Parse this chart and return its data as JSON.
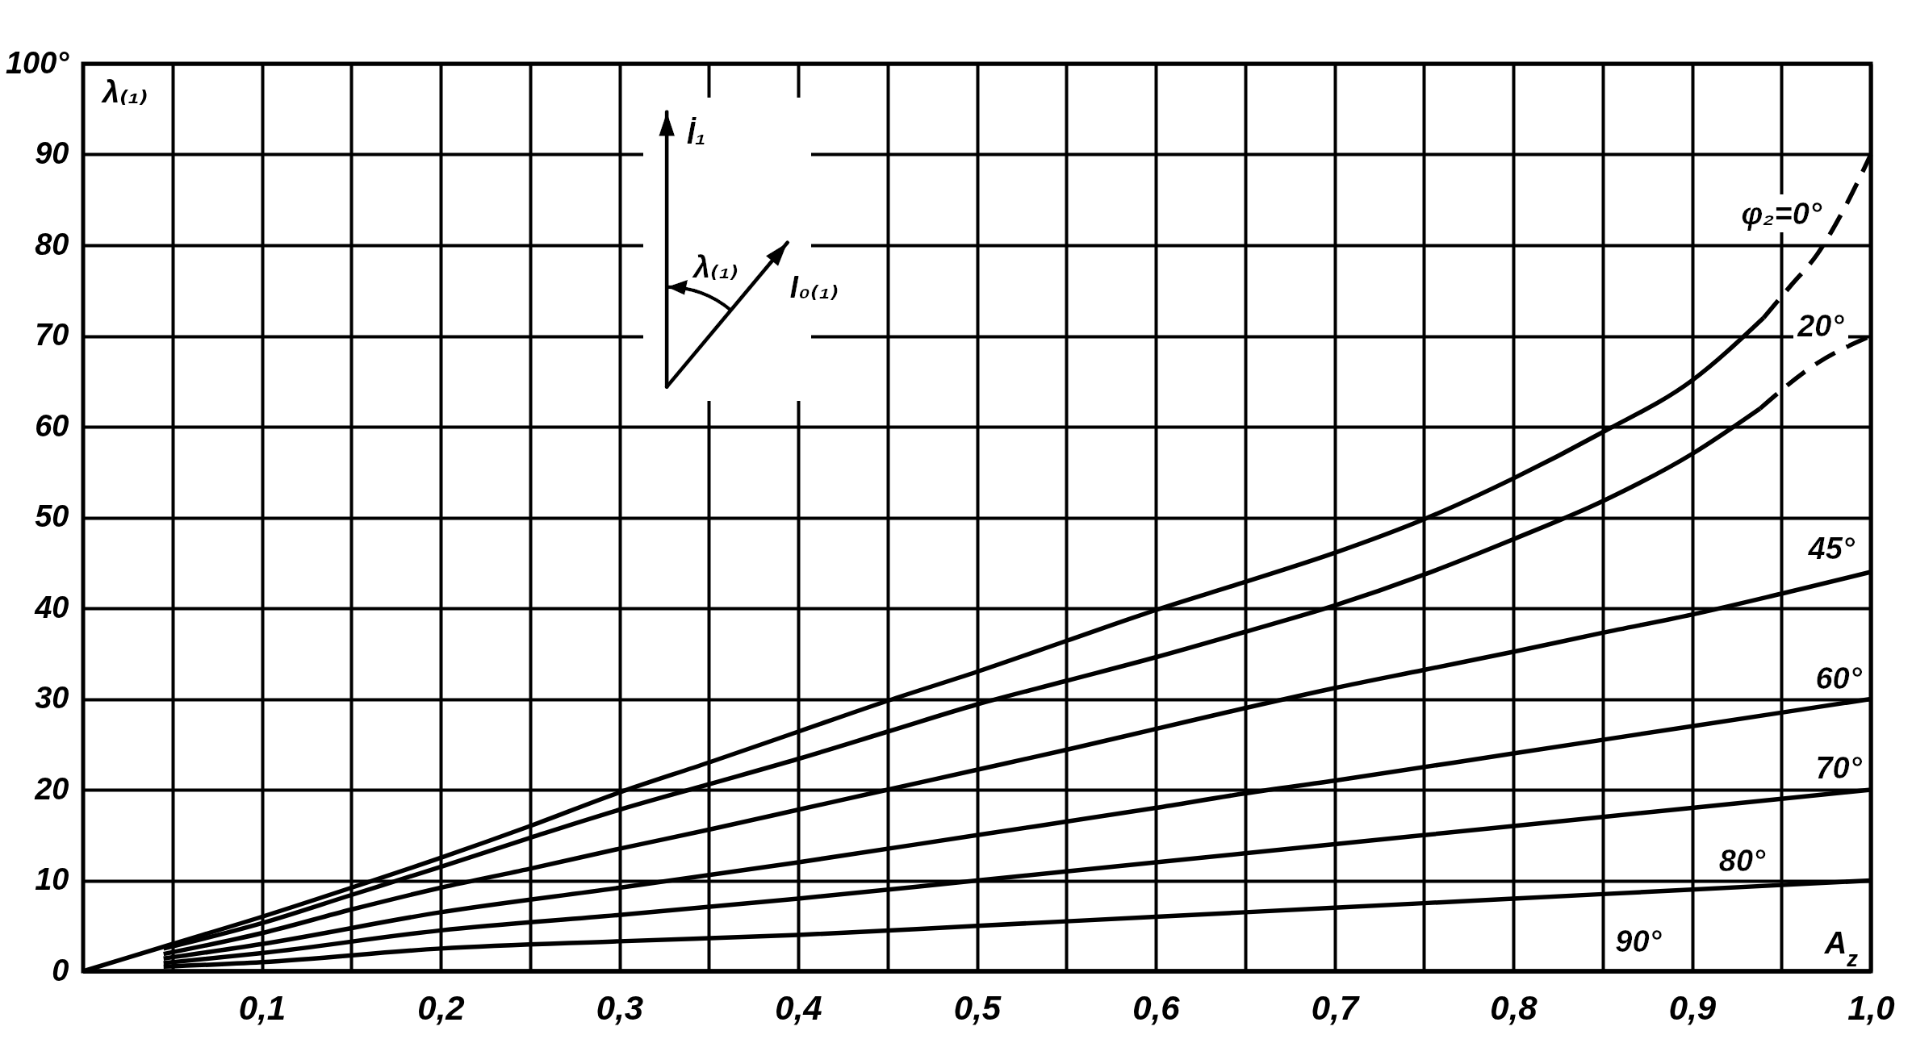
{
  "chart_data": {
    "type": "line",
    "xlabel": "A$_{z}$",
    "ylabel": "λ₍₁₎",
    "annotations": [
      "İ₁",
      "λ₍₁₎",
      "I₀₍₁₎"
    ],
    "xlim": [
      0,
      1.0
    ],
    "ylim": [
      0,
      100
    ],
    "xticks": [
      {
        "value": 0.05,
        "label": null
      },
      {
        "value": 0.1,
        "label": "0,1"
      },
      {
        "value": 0.15,
        "label": null
      },
      {
        "value": 0.2,
        "label": "0,2"
      },
      {
        "value": 0.25,
        "label": null
      },
      {
        "value": 0.3,
        "label": "0,3"
      },
      {
        "value": 0.35,
        "label": null
      },
      {
        "value": 0.4,
        "label": "0,4"
      },
      {
        "value": 0.45,
        "label": null
      },
      {
        "value": 0.5,
        "label": "0,5"
      },
      {
        "value": 0.55,
        "label": null
      },
      {
        "value": 0.6,
        "label": "0,6"
      },
      {
        "value": 0.65,
        "label": null
      },
      {
        "value": 0.7,
        "label": "0,7"
      },
      {
        "value": 0.75,
        "label": null
      },
      {
        "value": 0.8,
        "label": "0,8"
      },
      {
        "value": 0.85,
        "label": null
      },
      {
        "value": 0.9,
        "label": "0,9"
      },
      {
        "value": 0.95,
        "label": null
      },
      {
        "value": 1.0,
        "label": "1,0"
      }
    ],
    "yticks": [
      0,
      10,
      20,
      30,
      40,
      50,
      60,
      70,
      80,
      90,
      {
        "value": 100,
        "label": "100°"
      }
    ],
    "grid": true,
    "line_style": "solid",
    "series": [
      {
        "color": "#000000",
        "x": [
          0,
          0.05,
          0.1,
          0.15,
          0.2,
          0.25,
          0.3,
          0.35,
          0.4,
          0.45,
          0.5,
          0.55,
          0.6,
          0.65,
          0.7,
          0.75,
          0.8,
          0.85,
          0.9,
          0.94
        ],
        "values": [
          0,
          3,
          6,
          9.2,
          12.5,
          16,
          19.7,
          23,
          26.4,
          29.8,
          33,
          36.4,
          39.8,
          42.9,
          46.1,
          49.8,
          54.3,
          59.4,
          65.1,
          72
        ]
      },
      {
        "name": "φ₂=0°",
        "color": "#000000",
        "line_style": "dashed",
        "x": [
          0.94,
          0.955,
          0.97,
          0.985,
          1.0
        ],
        "values": [
          72,
          75.5,
          79,
          84,
          90
        ]
      },
      {
        "color": "#000000",
        "x": [
          0.045,
          0.1,
          0.15,
          0.2,
          0.25,
          0.3,
          0.35,
          0.4,
          0.45,
          0.5,
          0.55,
          0.6,
          0.65,
          0.7,
          0.75,
          0.8,
          0.85,
          0.9,
          0.938
        ],
        "values": [
          2.5,
          5.3,
          8.4,
          11.5,
          14.7,
          17.8,
          20.6,
          23.4,
          26.4,
          29.4,
          32,
          34.6,
          37.4,
          40.3,
          43.7,
          47.6,
          51.8,
          57,
          62
        ]
      },
      {
        "name": "20°",
        "color": "#000000",
        "line_style": "dashed",
        "x": [
          0.938,
          0.97,
          1.0
        ],
        "values": [
          62,
          67,
          70
        ]
      },
      {
        "name": "45°",
        "color": "#000000",
        "x": [
          0.045,
          0.1,
          0.15,
          0.2,
          0.25,
          0.3,
          0.35,
          0.4,
          0.45,
          0.5,
          0.55,
          0.6,
          0.65,
          0.7,
          0.75,
          0.8,
          0.85,
          0.9,
          0.95,
          1.0
        ],
        "values": [
          1.9,
          4.2,
          6.8,
          9.2,
          11.3,
          13.5,
          15.6,
          17.8,
          20,
          22.2,
          24.4,
          26.7,
          29,
          31.2,
          33.2,
          35.2,
          37.3,
          39.3,
          41.6,
          44
        ]
      },
      {
        "name": "60°",
        "color": "#000000",
        "x": [
          0.045,
          0.1,
          0.2,
          0.3,
          0.4,
          0.5,
          0.6,
          0.65,
          0.7,
          0.8,
          0.9,
          1.0
        ],
        "values": [
          1.4,
          3,
          6.5,
          9.2,
          12,
          15,
          18,
          19.6,
          21,
          24,
          27,
          30
        ]
      },
      {
        "name": "70°",
        "color": "#000000",
        "x": [
          0.045,
          0.1,
          0.2,
          0.3,
          0.4,
          0.5,
          0.6,
          0.7,
          0.8,
          0.9,
          1.0
        ],
        "values": [
          0.9,
          2,
          4.5,
          6.2,
          8,
          10,
          12,
          14,
          16,
          18,
          20
        ]
      },
      {
        "name": "80°",
        "color": "#000000",
        "x": [
          0.045,
          0.1,
          0.2,
          0.3,
          0.4,
          0.5,
          0.6,
          0.7,
          0.8,
          0.9,
          1.0
        ],
        "values": [
          0.5,
          1,
          2.5,
          3.3,
          4,
          5,
          6,
          7,
          8,
          9,
          10
        ]
      },
      {
        "name": "90°",
        "color": "#000000",
        "x": [
          0,
          1.0
        ],
        "values": [
          0,
          0
        ]
      }
    ]
  }
}
